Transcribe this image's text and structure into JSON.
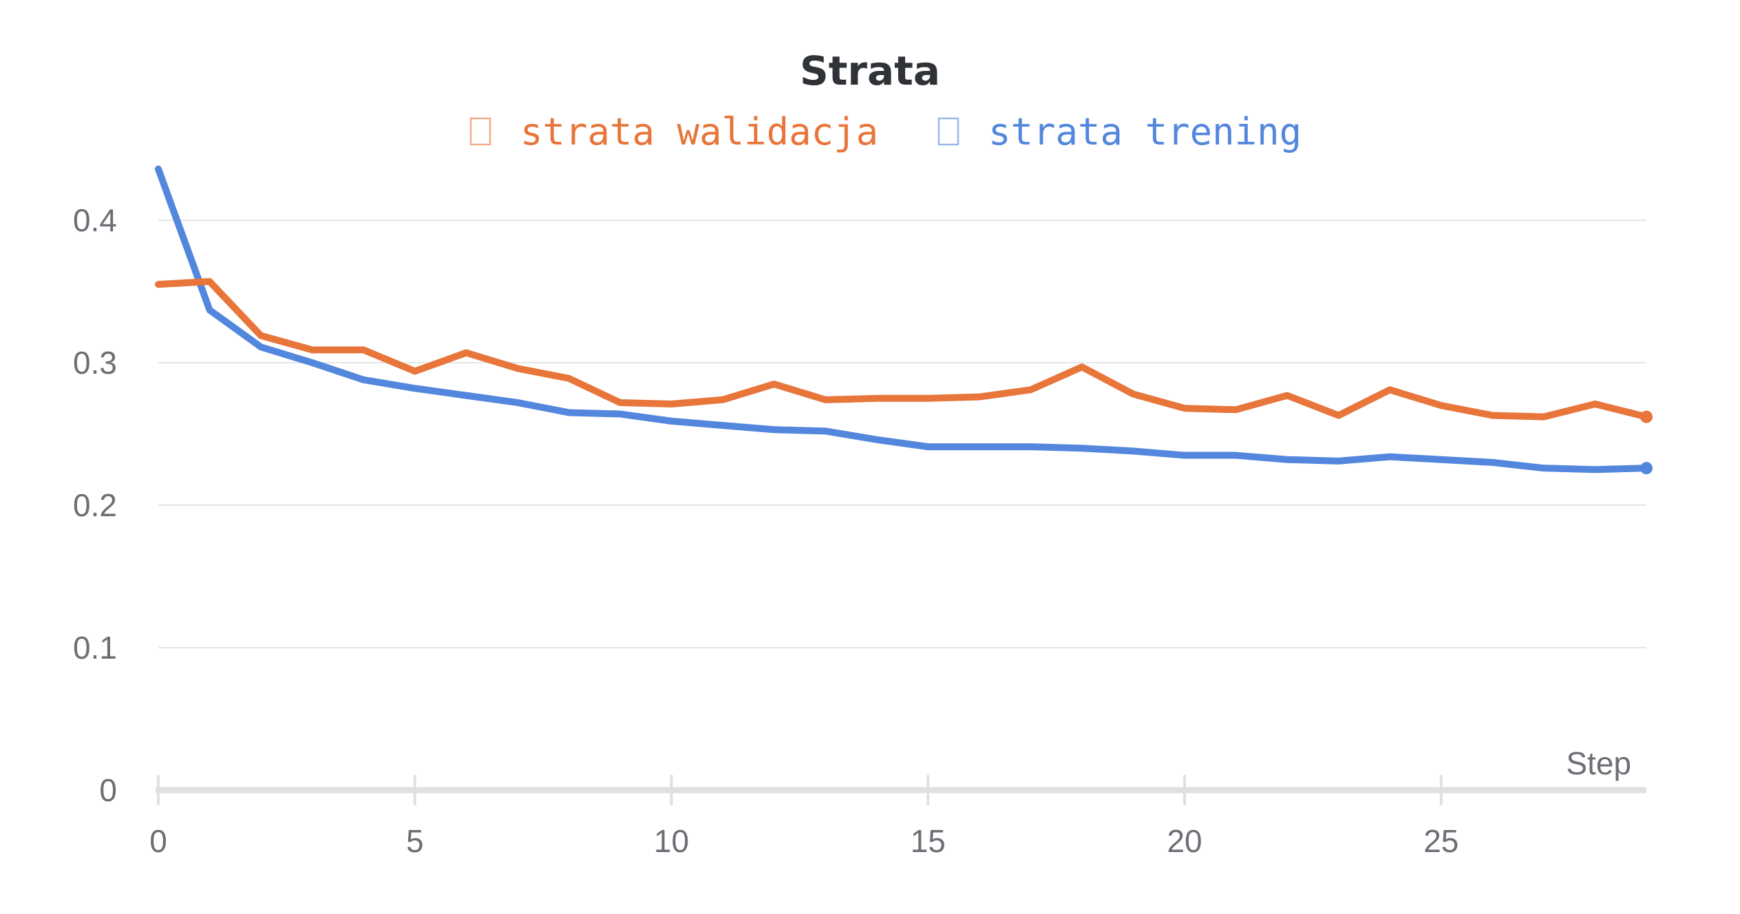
{
  "chart_data": {
    "type": "line",
    "title": "Strata",
    "xlabel": "Step",
    "ylabel": "",
    "xlim": [
      0,
      29
    ],
    "ylim": [
      0,
      0.44
    ],
    "x_ticks": [
      "0",
      "5",
      "10",
      "15",
      "20",
      "25"
    ],
    "x_tick_values": [
      0,
      5,
      10,
      15,
      20,
      25
    ],
    "y_ticks": [
      "0",
      "0.1",
      "0.2",
      "0.3",
      "0.4"
    ],
    "y_tick_values": [
      0,
      0.1,
      0.2,
      0.3,
      0.4
    ],
    "grid": true,
    "legend_position": "top-center",
    "x": [
      0,
      1,
      2,
      3,
      4,
      5,
      6,
      7,
      8,
      9,
      10,
      11,
      12,
      13,
      14,
      15,
      16,
      17,
      18,
      19,
      20,
      21,
      22,
      23,
      24,
      25,
      26,
      27,
      28,
      29
    ],
    "series": [
      {
        "name": "strata walidacja",
        "color": "#e8753a",
        "values": [
          0.355,
          0.357,
          0.319,
          0.309,
          0.309,
          0.294,
          0.307,
          0.296,
          0.289,
          0.272,
          0.271,
          0.274,
          0.285,
          0.274,
          0.275,
          0.275,
          0.276,
          0.281,
          0.297,
          0.278,
          0.268,
          0.267,
          0.277,
          0.263,
          0.281,
          0.27,
          0.263,
          0.262,
          0.271,
          0.262
        ]
      },
      {
        "name": "strata trening",
        "color": "#5387dd",
        "values": [
          0.436,
          0.337,
          0.311,
          0.3,
          0.288,
          0.282,
          0.277,
          0.272,
          0.265,
          0.264,
          0.259,
          0.256,
          0.253,
          0.252,
          0.246,
          0.241,
          0.241,
          0.241,
          0.24,
          0.238,
          0.235,
          0.235,
          0.232,
          0.231,
          0.234,
          0.232,
          0.23,
          0.226,
          0.225,
          0.226
        ]
      }
    ]
  }
}
